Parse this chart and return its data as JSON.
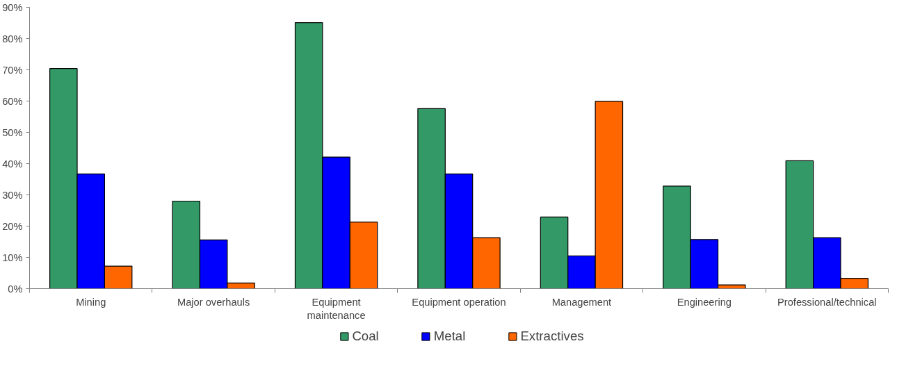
{
  "chart_data": {
    "type": "bar",
    "categories": [
      "Mining",
      "Major overhauls",
      "Equipment maintenance",
      "Equipment operation",
      "Management",
      "Engineering",
      "Professional/technical"
    ],
    "series": [
      {
        "name": "Coal",
        "color": "#339966",
        "values": [
          70.4,
          28.0,
          85.1,
          57.6,
          22.9,
          32.8,
          40.9
        ]
      },
      {
        "name": "Metal",
        "color": "#0000ff",
        "values": [
          36.7,
          15.6,
          42.1,
          36.7,
          10.5,
          15.7,
          16.3
        ]
      },
      {
        "name": "Extractives",
        "color": "#ff6600",
        "values": [
          7.2,
          1.8,
          21.3,
          16.3,
          59.9,
          1.2,
          3.3
        ]
      }
    ],
    "ylim": [
      0,
      90
    ],
    "yticks": [
      {
        "value": 0,
        "label": "0%"
      },
      {
        "value": 10,
        "label": "10%"
      },
      {
        "value": 20,
        "label": "20%"
      },
      {
        "value": 30,
        "label": "30%"
      },
      {
        "value": 40,
        "label": "40%"
      },
      {
        "value": 50,
        "label": "50%"
      },
      {
        "value": 60,
        "label": "60%"
      },
      {
        "value": 70,
        "label": "70%"
      },
      {
        "value": 80,
        "label": "80%"
      },
      {
        "value": 90,
        "label": "90%"
      }
    ],
    "grid": false,
    "legend": "bottom"
  }
}
